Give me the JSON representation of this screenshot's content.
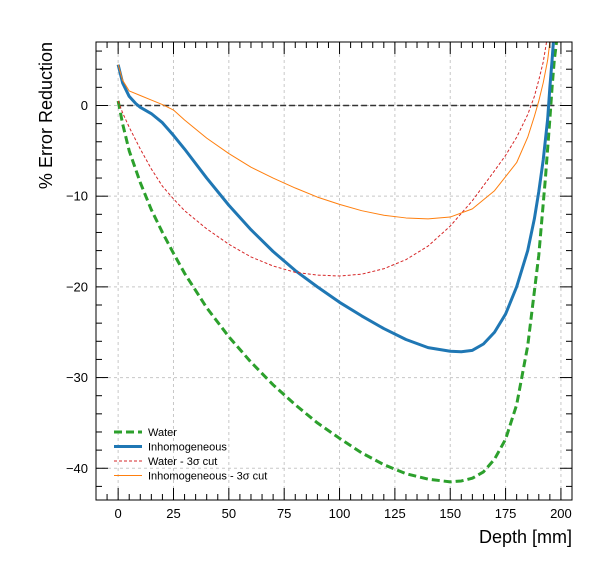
{
  "chart_data": {
    "type": "line",
    "title": "",
    "xlabel": "Depth [mm]",
    "ylabel": "% Error Reduction",
    "xlim": [
      -10,
      205
    ],
    "ylim": [
      -43.5,
      7
    ],
    "xticks": [
      "0",
      "25",
      "50",
      "75",
      "100",
      "125",
      "150",
      "175",
      "200"
    ],
    "yticks": [
      "0",
      "−10",
      "−20",
      "−30",
      "−40"
    ],
    "grid": true,
    "legend_position": "bottom-left",
    "reference_line": {
      "y": 0,
      "style": "dashed",
      "color": "#333333"
    },
    "series": [
      {
        "name": "Water",
        "color": "#2ca02c",
        "style": "dashed",
        "width": 3,
        "x": [
          0,
          2,
          5,
          10,
          15,
          20,
          25,
          30,
          40,
          50,
          60,
          70,
          80,
          90,
          100,
          110,
          120,
          130,
          140,
          150,
          155,
          160,
          165,
          170,
          175,
          180,
          185,
          190,
          193,
          195,
          196,
          197,
          198
        ],
        "y": [
          0.5,
          -2,
          -5,
          -8.5,
          -11.5,
          -14,
          -16.3,
          -18.5,
          -22.3,
          -25.5,
          -28.3,
          -30.8,
          -33,
          -35,
          -36.7,
          -38.3,
          -39.6,
          -40.6,
          -41.2,
          -41.5,
          -41.4,
          -41.1,
          -40.4,
          -39,
          -36.8,
          -33,
          -26.5,
          -16.5,
          -8,
          -1.5,
          2,
          5,
          7
        ]
      },
      {
        "name": "Inhomogeneous",
        "color": "#1f77b4",
        "style": "solid",
        "width": 3,
        "x": [
          0,
          2,
          5,
          8,
          10,
          15,
          20,
          25,
          30,
          40,
          50,
          60,
          70,
          80,
          90,
          100,
          110,
          120,
          130,
          140,
          150,
          155,
          160,
          165,
          170,
          175,
          180,
          185,
          188,
          190,
          192,
          194,
          195,
          196,
          196.6
        ],
        "y": [
          4.5,
          2.5,
          1,
          0.2,
          -0.2,
          -0.9,
          -1.9,
          -3.3,
          -4.8,
          -8,
          -11,
          -13.7,
          -16.1,
          -18.2,
          -20,
          -21.7,
          -23.2,
          -24.6,
          -25.8,
          -26.7,
          -27.1,
          -27.15,
          -27,
          -26.3,
          -25,
          -23,
          -20,
          -16,
          -12.5,
          -9.5,
          -6,
          -1.5,
          2,
          5,
          7
        ]
      },
      {
        "name": "Water - 3σ cut",
        "color": "#d62728",
        "style": "dotted",
        "width": 1,
        "x": [
          0,
          2,
          5,
          10,
          15,
          20,
          25,
          30,
          40,
          50,
          60,
          70,
          80,
          90,
          100,
          110,
          120,
          130,
          140,
          150,
          160,
          170,
          175,
          180,
          185,
          188,
          190,
          192,
          193.5,
          194.5,
          195.5
        ],
        "y": [
          0.5,
          -0.8,
          -2.4,
          -4.8,
          -7,
          -8.9,
          -10.3,
          -11.6,
          -13.6,
          -15.3,
          -16.7,
          -17.7,
          -18.4,
          -18.7,
          -18.8,
          -18.6,
          -18,
          -17,
          -15.5,
          -13.3,
          -10.5,
          -7.2,
          -5.5,
          -3.5,
          -1,
          1,
          2.8,
          4.8,
          7,
          7,
          7
        ]
      },
      {
        "name": "Inhomogeneous - 3σ cut",
        "color": "#ff7f0e",
        "style": "solid",
        "width": 1,
        "x": [
          0,
          2,
          5,
          10,
          15,
          20,
          25,
          30,
          40,
          50,
          60,
          70,
          80,
          90,
          100,
          110,
          120,
          130,
          140,
          150,
          160,
          170,
          180,
          185,
          188,
          190,
          192,
          194,
          195
        ],
        "y": [
          4.5,
          2.8,
          1.6,
          1.1,
          0.6,
          0.1,
          -0.5,
          -1.6,
          -3.6,
          -5.3,
          -6.8,
          -8,
          -9.1,
          -10.1,
          -10.9,
          -11.6,
          -12.1,
          -12.4,
          -12.5,
          -12.3,
          -11.4,
          -9.4,
          -6.3,
          -3.5,
          -1.2,
          0.5,
          2.5,
          5,
          7
        ]
      }
    ]
  }
}
